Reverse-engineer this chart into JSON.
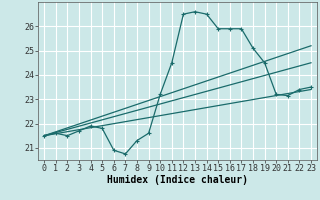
{
  "xlabel": "Humidex (Indice chaleur)",
  "background_color": "#cce8e8",
  "grid_color": "#b0d0d0",
  "line_color": "#1a6b6b",
  "xlim": [
    -0.5,
    23.5
  ],
  "ylim": [
    20.5,
    27.0
  ],
  "yticks": [
    21,
    22,
    23,
    24,
    25,
    26
  ],
  "xticks": [
    0,
    1,
    2,
    3,
    4,
    5,
    6,
    7,
    8,
    9,
    10,
    11,
    12,
    13,
    14,
    15,
    16,
    17,
    18,
    19,
    20,
    21,
    22,
    23
  ],
  "series1_x": [
    0,
    1,
    2,
    3,
    4,
    5,
    6,
    7,
    8,
    9,
    10,
    11,
    12,
    13,
    14,
    15,
    16,
    17,
    18,
    19,
    20,
    21,
    22,
    23
  ],
  "series1_y": [
    21.5,
    21.6,
    21.5,
    21.7,
    21.9,
    21.8,
    20.9,
    20.75,
    21.3,
    21.6,
    23.2,
    24.5,
    26.5,
    26.6,
    26.5,
    25.9,
    25.9,
    25.9,
    25.1,
    24.5,
    23.2,
    23.15,
    23.4,
    23.5
  ],
  "series2_x": [
    0,
    23
  ],
  "series2_y": [
    21.5,
    23.4
  ],
  "series3_x": [
    0,
    23
  ],
  "series3_y": [
    21.5,
    24.5
  ],
  "series4_x": [
    0,
    23
  ],
  "series4_y": [
    21.5,
    25.2
  ]
}
